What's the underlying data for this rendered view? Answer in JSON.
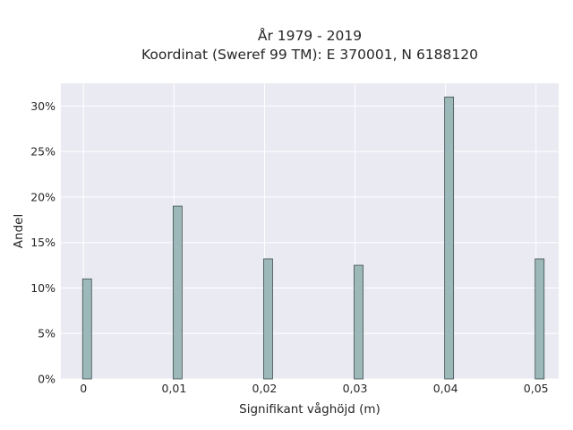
{
  "chart_data": {
    "type": "bar",
    "title_lines": [
      "År 1979 - 2019",
      "Koordinat (Sweref 99 TM): E 370001, N 6188120"
    ],
    "xlabel": "Signifikant våghöjd (m)",
    "ylabel": "Andel",
    "x": [
      0,
      0.01,
      0.02,
      0.03,
      0.04,
      0.05
    ],
    "x_tick_labels": [
      "0",
      "0,01",
      "0,02",
      "0,03",
      "0,04",
      "0,05"
    ],
    "values": [
      11.0,
      19.0,
      13.2,
      12.5,
      31.0,
      13.2
    ],
    "y_ticks": [
      0,
      5,
      10,
      15,
      20,
      25,
      30
    ],
    "y_tick_labels": [
      "0%",
      "5%",
      "10%",
      "15%",
      "20%",
      "25%",
      "30%"
    ],
    "xlim": [
      -0.0025,
      0.0525
    ],
    "ylim": [
      0,
      32.5
    ],
    "grid": true,
    "colors": {
      "background": "#eaeaf2",
      "grid": "#ffffff",
      "bar_fill": "#9db8b9",
      "bar_edge": "#3f4f4f"
    }
  }
}
